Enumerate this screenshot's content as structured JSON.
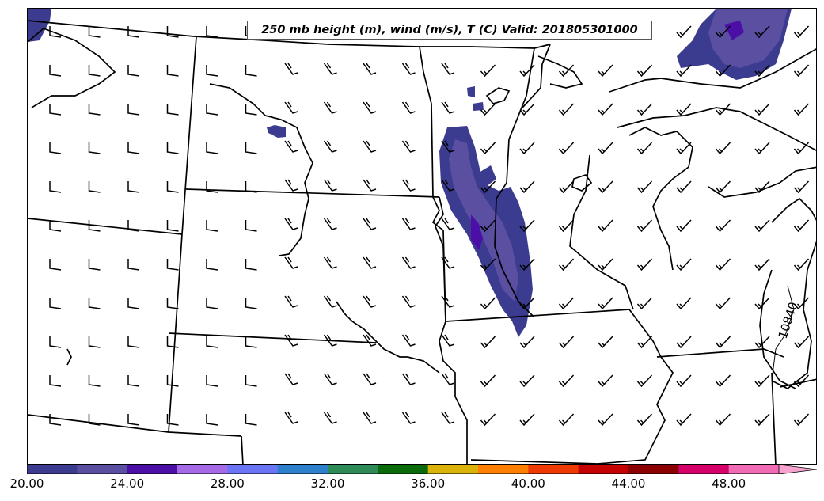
{
  "title": "250 mb height (m), wind (m/s), T (C) Valid: 201805301000",
  "contour_label": "10840",
  "colorbar": {
    "ticks": [
      "20.00",
      "24.00",
      "28.00",
      "32.00",
      "36.00",
      "40.00",
      "44.00",
      "48.00"
    ],
    "colors": [
      "#3b3b8f",
      "#5a4fa0",
      "#4b0fa8",
      "#a66ae6",
      "#6b74f5",
      "#2f80cc",
      "#2e8b57",
      "#0a6b0a",
      "#d9b20a",
      "#ff8000",
      "#ee3a00",
      "#c40000",
      "#8b0000",
      "#d6006b",
      "#f06ab4"
    ],
    "extend_color": "#f7a3d0"
  },
  "colors": {
    "jet_core_light": "#5a4fa0",
    "jet_core_dark": "#3b3b8f",
    "jet_core_max": "#4b0fa8",
    "boundary": "#000000"
  }
}
